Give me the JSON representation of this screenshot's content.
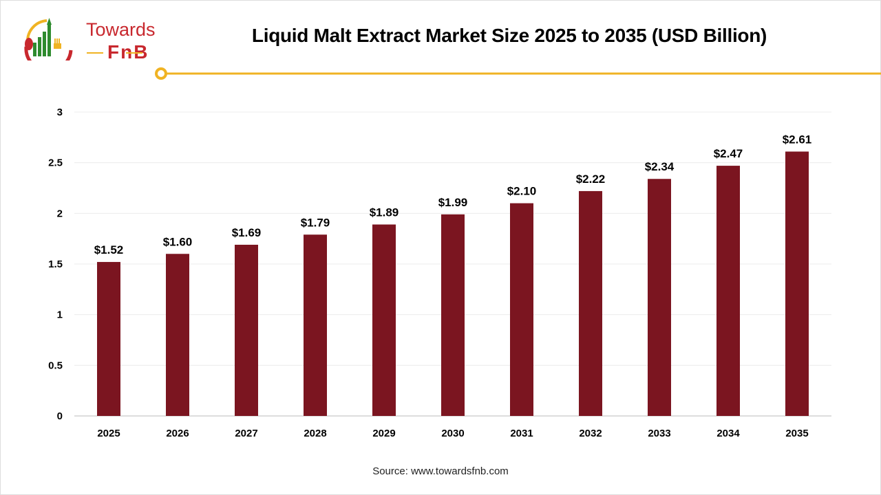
{
  "logo": {
    "line1": "Towards",
    "line2": "FnB"
  },
  "source": "Source: www.towardsfnb.com",
  "colors": {
    "bar": "#7b1520",
    "accent": "#f0b323",
    "logo_red": "#c8282e",
    "logo_green": "#2e8b2e"
  },
  "chart_data": {
    "type": "bar",
    "title": "Liquid Malt Extract Market Size 2025 to 2035 (USD Billion)",
    "categories": [
      "2025",
      "2026",
      "2027",
      "2028",
      "2029",
      "2030",
      "2031",
      "2032",
      "2033",
      "2034",
      "2035"
    ],
    "values": [
      1.52,
      1.6,
      1.69,
      1.79,
      1.89,
      1.99,
      2.1,
      2.22,
      2.34,
      2.47,
      2.61
    ],
    "data_labels": [
      "$1.52",
      "$1.60",
      "$1.69",
      "$1.79",
      "$1.89",
      "$1.99",
      "$2.10",
      "$2.22",
      "$2.34",
      "$2.47",
      "$2.61"
    ],
    "ylim": [
      0,
      3
    ],
    "yticks": [
      "0",
      "0.5",
      "1",
      "1.5",
      "2",
      "2.5",
      "3"
    ],
    "grid": true,
    "legend": "none"
  }
}
